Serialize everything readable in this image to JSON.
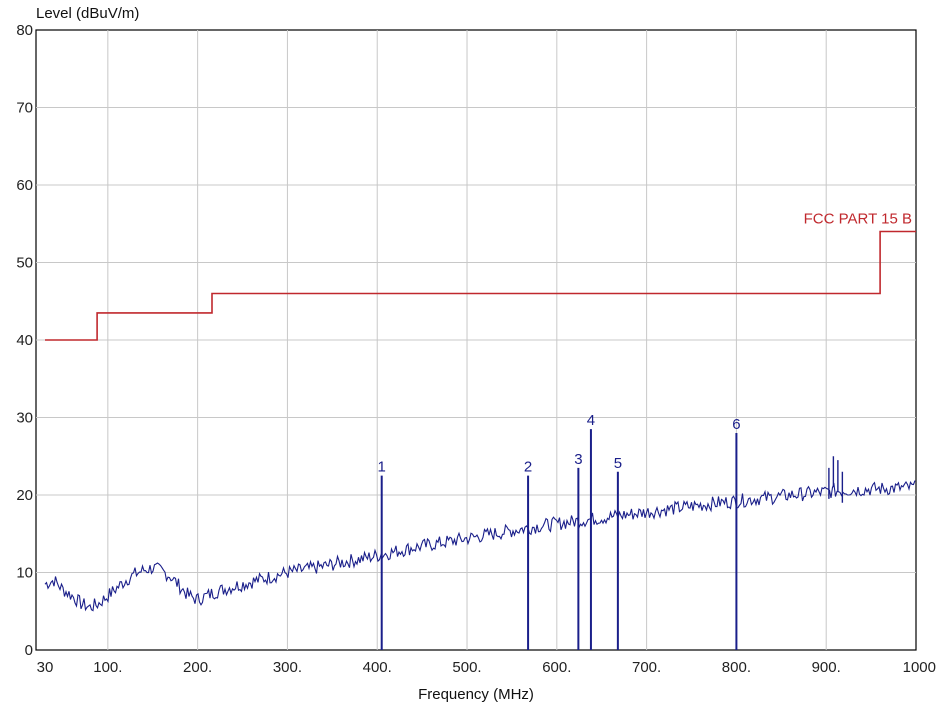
{
  "chart_data": {
    "type": "line",
    "ylabel": "Level (dBuV/m)",
    "xlabel": "Frequency (MHz)",
    "xlim": [
      30,
      1000
    ],
    "ylim": [
      0,
      80
    ],
    "grid": true,
    "x_ticks": [
      {
        "value": 30,
        "label": "30"
      },
      {
        "value": 100,
        "label": "100."
      },
      {
        "value": 200,
        "label": "200."
      },
      {
        "value": 300,
        "label": "300."
      },
      {
        "value": 400,
        "label": "400."
      },
      {
        "value": 500,
        "label": "500."
      },
      {
        "value": 600,
        "label": "600."
      },
      {
        "value": 700,
        "label": "700."
      },
      {
        "value": 800,
        "label": "800."
      },
      {
        "value": 900,
        "label": "900."
      },
      {
        "value": 1000,
        "label": "1000"
      }
    ],
    "y_ticks": [
      {
        "value": 0,
        "label": "0"
      },
      {
        "value": 10,
        "label": "10"
      },
      {
        "value": 20,
        "label": "20"
      },
      {
        "value": 30,
        "label": "30"
      },
      {
        "value": 40,
        "label": "40"
      },
      {
        "value": 50,
        "label": "50"
      },
      {
        "value": 60,
        "label": "60"
      },
      {
        "value": 70,
        "label": "70"
      },
      {
        "value": 80,
        "label": "80"
      }
    ],
    "limit_line": {
      "name": "FCC PART 15 B",
      "color": "#c0282d",
      "points": [
        [
          30,
          40
        ],
        [
          88,
          40
        ],
        [
          88,
          43.5
        ],
        [
          216,
          43.5
        ],
        [
          216,
          46
        ],
        [
          960,
          46
        ],
        [
          960,
          54
        ],
        [
          1000,
          54
        ]
      ]
    },
    "trace": {
      "color": "#1a1f8a",
      "points": [
        [
          30,
          8.5
        ],
        [
          40,
          9.0
        ],
        [
          50,
          7.8
        ],
        [
          60,
          7.0
        ],
        [
          70,
          6.0
        ],
        [
          80,
          5.5
        ],
        [
          90,
          6.0
        ],
        [
          100,
          7.0
        ],
        [
          110,
          8.0
        ],
        [
          120,
          9.0
        ],
        [
          130,
          9.8
        ],
        [
          140,
          10.3
        ],
        [
          150,
          10.6
        ],
        [
          160,
          10.2
        ],
        [
          170,
          9.5
        ],
        [
          180,
          8.2
        ],
        [
          190,
          7.0
        ],
        [
          200,
          6.5
        ],
        [
          210,
          7.0
        ],
        [
          220,
          7.5
        ],
        [
          240,
          8.2
        ],
        [
          260,
          8.8
        ],
        [
          280,
          9.4
        ],
        [
          300,
          10.0
        ],
        [
          320,
          10.4
        ],
        [
          340,
          10.8
        ],
        [
          360,
          11.3
        ],
        [
          380,
          11.7
        ],
        [
          400,
          12.2
        ],
        [
          420,
          12.7
        ],
        [
          440,
          13.2
        ],
        [
          460,
          13.6
        ],
        [
          480,
          14.0
        ],
        [
          500,
          14.4
        ],
        [
          520,
          14.8
        ],
        [
          540,
          15.2
        ],
        [
          560,
          15.6
        ],
        [
          580,
          16.0
        ],
        [
          600,
          16.3
        ],
        [
          620,
          16.6
        ],
        [
          640,
          16.9
        ],
        [
          660,
          17.2
        ],
        [
          680,
          17.5
        ],
        [
          700,
          17.8
        ],
        [
          720,
          18.1
        ],
        [
          740,
          18.4
        ],
        [
          760,
          18.7
        ],
        [
          780,
          19.0
        ],
        [
          800,
          19.2
        ],
        [
          820,
          19.5
        ],
        [
          840,
          19.7
        ],
        [
          860,
          20.0
        ],
        [
          880,
          20.2
        ],
        [
          900,
          20.4
        ],
        [
          920,
          20.6
        ],
        [
          940,
          20.7
        ],
        [
          960,
          20.8
        ],
        [
          980,
          20.9
        ],
        [
          1000,
          21.0
        ]
      ]
    },
    "spikes": [
      {
        "x": 903,
        "y": 23.5
      },
      {
        "x": 908,
        "y": 25.0
      },
      {
        "x": 913,
        "y": 24.5
      },
      {
        "x": 918,
        "y": 23.0
      }
    ],
    "markers": [
      {
        "label": "1",
        "x": 405,
        "y": 22.5
      },
      {
        "label": "2",
        "x": 568,
        "y": 22.5
      },
      {
        "label": "3",
        "x": 624,
        "y": 23.5
      },
      {
        "label": "4",
        "x": 638,
        "y": 28.5
      },
      {
        "label": "5",
        "x": 668,
        "y": 23.0
      },
      {
        "label": "6",
        "x": 800,
        "y": 28.0
      }
    ]
  }
}
